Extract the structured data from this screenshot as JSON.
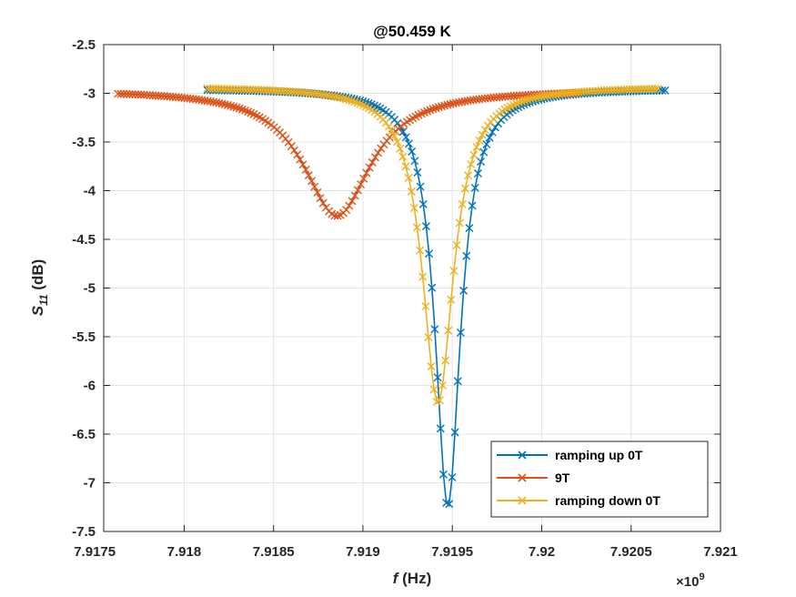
{
  "chart_data": {
    "type": "line",
    "title": "@50.459 K",
    "xlabel": {
      "italic": "f",
      "rest": " (Hz)"
    },
    "ylabel": {
      "main": "S",
      "subscript": "11",
      "rest": " (dB)"
    },
    "x_exponent_base": "×10",
    "x_exponent_power": "9",
    "xlim": [
      7.91755,
      7.921
    ],
    "ylim": [
      -7.5,
      -2.5
    ],
    "x_ticks": [
      7.918,
      7.9185,
      7.919,
      7.9195,
      7.92,
      7.9205,
      7.921
    ],
    "x_tick_labels": [
      "7.9175",
      "7.918",
      "7.9185",
      "7.919",
      "7.9195",
      "7.92",
      "7.9205",
      "7.921"
    ],
    "x_tick_values": [
      7.9175,
      7.918,
      7.9185,
      7.919,
      7.9195,
      7.92,
      7.9205,
      7.921
    ],
    "y_tick_values": [
      -7.5,
      -7,
      -6.5,
      -6,
      -5.5,
      -5,
      -4.5,
      -4,
      -3.5,
      -3,
      -2.5
    ],
    "y_tick_labels": [
      "-7.5",
      "-7",
      "-6.5",
      "-6",
      "-5.5",
      "-5",
      "-4.5",
      "-4",
      "-3.5",
      "-3",
      "-2.5"
    ],
    "grid": true,
    "legend_position": "bottom-right",
    "marker": "x",
    "series": [
      {
        "name": "ramping up 0T",
        "color": "#0072BD",
        "x_start": 7.91813,
        "x_end": 7.92069,
        "f0": 7.919475,
        "depth": 4.3,
        "width": 8.5e-05,
        "baseline": -2.95,
        "points": 160
      },
      {
        "name": "9T",
        "color": "#D95319",
        "x_start": 7.91763,
        "x_end": 7.9202,
        "f0": 7.918855,
        "depth": 1.3,
        "width": 0.00023,
        "baseline": -2.96,
        "points": 160
      },
      {
        "name": "ramping down 0T",
        "color": "#EDB120",
        "x_start": 7.91813,
        "x_end": 7.92065,
        "f0": 7.91942,
        "depth": 3.25,
        "width": 0.000105,
        "baseline": -2.93,
        "points": 160
      }
    ]
  }
}
